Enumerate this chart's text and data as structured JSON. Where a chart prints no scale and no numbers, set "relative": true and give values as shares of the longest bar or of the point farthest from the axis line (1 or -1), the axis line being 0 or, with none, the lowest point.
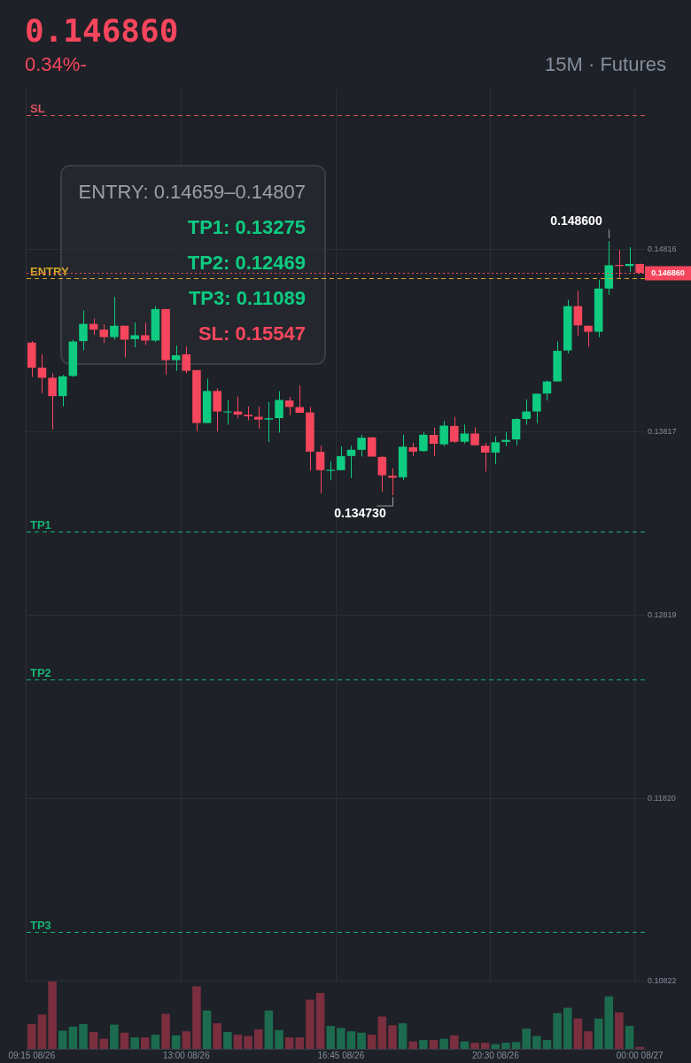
{
  "chart_data": [
    {
      "type": "candlestick",
      "title": "0.146860",
      "subtitle": "0.34%-",
      "annotations": [
        "15M · Futures",
        "ENTRY: 0.14659–0.14807",
        "TP1: 0.13275",
        "TP2: 0.12469",
        "TP3: 0.11089",
        "SL: 0.15547",
        "0.148600",
        "0.134730"
      ],
      "categories": [
        "09:15 08/26",
        null,
        null,
        null,
        null,
        null,
        null,
        null,
        null,
        null,
        null,
        null,
        null,
        null,
        null,
        "13:00 08/26",
        null,
        null,
        null,
        null,
        null,
        null,
        null,
        null,
        null,
        null,
        null,
        null,
        null,
        null,
        "16:45 08/26",
        null,
        null,
        null,
        null,
        null,
        null,
        null,
        null,
        null,
        null,
        null,
        null,
        null,
        null,
        "20:30 08/26",
        null,
        null,
        null,
        null,
        null,
        null,
        null,
        null,
        null,
        null,
        null,
        null,
        null,
        "00:00 08/27"
      ],
      "ohlc": [
        [
          0.14306,
          0.14314,
          0.14118,
          0.14169
        ],
        [
          0.14169,
          0.14242,
          0.1403,
          0.14114
        ],
        [
          0.14114,
          0.14137,
          0.13831,
          0.14014
        ],
        [
          0.14014,
          0.1413,
          0.13958,
          0.14122
        ],
        [
          0.14124,
          0.14322,
          0.14118,
          0.14312
        ],
        [
          0.14314,
          0.14481,
          0.14264,
          0.14408
        ],
        [
          0.14408,
          0.14437,
          0.14349,
          0.14377
        ],
        [
          0.14377,
          0.14405,
          0.14304,
          0.14336
        ],
        [
          0.14336,
          0.14556,
          0.14322,
          0.14398
        ],
        [
          0.14398,
          0.14398,
          0.14226,
          0.14322
        ],
        [
          0.14325,
          0.14416,
          0.1428,
          0.14346
        ],
        [
          0.14346,
          0.14416,
          0.14293,
          0.14317
        ],
        [
          0.14317,
          0.14505,
          0.14309,
          0.14489
        ],
        [
          0.14489,
          0.14489,
          0.1413,
          0.1421
        ],
        [
          0.1421,
          0.1429,
          0.14152,
          0.14237
        ],
        [
          0.14242,
          0.14285,
          0.14138,
          0.14152
        ],
        [
          0.14156,
          0.14156,
          0.13822,
          0.13867
        ],
        [
          0.13867,
          0.14109,
          0.13867,
          0.14042
        ],
        [
          0.14042,
          0.14057,
          0.13822,
          0.1393
        ],
        [
          0.13925,
          0.13993,
          0.13858,
          0.1393
        ],
        [
          0.1393,
          0.14011,
          0.13893,
          0.13913
        ],
        [
          0.13912,
          0.13958,
          0.13882,
          0.13904
        ],
        [
          0.13901,
          0.13958,
          0.13837,
          0.13886
        ],
        [
          0.13886,
          0.13982,
          0.13764,
          0.13893
        ],
        [
          0.13894,
          0.14041,
          0.13815,
          0.13993
        ],
        [
          0.1399,
          0.14009,
          0.1391,
          0.13955
        ],
        [
          0.13954,
          0.14073,
          0.13923,
          0.13923
        ],
        [
          0.13925,
          0.13955,
          0.13607,
          0.13711
        ],
        [
          0.1371,
          0.13743,
          0.13483,
          0.1361
        ],
        [
          0.13606,
          0.13658,
          0.13556,
          0.13612
        ],
        [
          0.1361,
          0.1374,
          0.1361,
          0.13687
        ],
        [
          0.13687,
          0.13744,
          0.13567,
          0.13721
        ],
        [
          0.13721,
          0.13803,
          0.13684,
          0.13787
        ],
        [
          0.13789,
          0.13789,
          0.13684,
          0.13684
        ],
        [
          0.13682,
          0.13687,
          0.13492,
          0.13582
        ],
        [
          0.1358,
          0.1362,
          0.13473,
          0.13569
        ],
        [
          0.13571,
          0.13803,
          0.13556,
          0.13738
        ],
        [
          0.13735,
          0.13759,
          0.13687,
          0.13711
        ],
        [
          0.13714,
          0.13816,
          0.13709,
          0.13803
        ],
        [
          0.13802,
          0.13842,
          0.13687,
          0.13754
        ],
        [
          0.13751,
          0.13878,
          0.13741,
          0.13853
        ],
        [
          0.13851,
          0.13901,
          0.13759,
          0.13765
        ],
        [
          0.13765,
          0.13859,
          0.13755,
          0.1381
        ],
        [
          0.1381,
          0.13843,
          0.13746,
          0.13746
        ],
        [
          0.13743,
          0.13759,
          0.13602,
          0.13706
        ],
        [
          0.13706,
          0.13794,
          0.13642,
          0.13762
        ],
        [
          0.13764,
          0.13819,
          0.13741,
          0.13775
        ],
        [
          0.13778,
          0.13893,
          0.13746,
          0.13889
        ],
        [
          0.13889,
          0.13996,
          0.13858,
          0.1393
        ],
        [
          0.1393,
          0.14027,
          0.13866,
          0.14027
        ],
        [
          0.14028,
          0.141,
          0.1399,
          0.14094
        ],
        [
          0.14094,
          0.14312,
          0.14094,
          0.14261
        ],
        [
          0.14263,
          0.1454,
          0.14247,
          0.14505
        ],
        [
          0.14505,
          0.14588,
          0.14344,
          0.144
        ],
        [
          0.14398,
          0.14398,
          0.14282,
          0.14365
        ],
        [
          0.14365,
          0.14649,
          0.14336,
          0.14601
        ],
        [
          0.14601,
          0.1486,
          0.14567,
          0.14728
        ],
        [
          0.1473,
          0.14811,
          0.14657,
          0.14724
        ],
        [
          0.14724,
          0.14827,
          0.14692,
          0.14735
        ],
        [
          0.14735,
          0.14738,
          0.14686,
          0.14686
        ]
      ],
      "colors": [
        "#f6465d",
        "#f6465d",
        "#f6465d",
        "#0ecb81",
        "#0ecb81",
        "#0ecb81",
        "#f6465d",
        "#f6465d",
        "#0ecb81",
        "#f6465d",
        "#0ecb81",
        "#f6465d",
        "#0ecb81",
        "#f6465d",
        "#0ecb81",
        "#f6465d",
        "#f6465d",
        "#0ecb81",
        "#f6465d",
        "#0ecb81",
        "#f6465d",
        "#f6465d",
        "#f6465d",
        "#0ecb81",
        "#0ecb81",
        "#f6465d",
        "#f6465d",
        "#f6465d",
        "#f6465d",
        "#0ecb81",
        "#0ecb81",
        "#0ecb81",
        "#0ecb81",
        "#f6465d",
        "#f6465d",
        "#f6465d",
        "#0ecb81",
        "#f6465d",
        "#0ecb81",
        "#f6465d",
        "#0ecb81",
        "#f6465d",
        "#0ecb81",
        "#f6465d",
        "#f6465d",
        "#0ecb81",
        "#0ecb81",
        "#0ecb81",
        "#0ecb81",
        "#0ecb81",
        "#0ecb81",
        "#0ecb81",
        "#0ecb81",
        "#f6465d",
        "#f6465d",
        "#0ecb81",
        "#0ecb81",
        "#f6465d",
        "#0ecb81",
        "#f6465d"
      ],
      "ylim": [
        0.10822,
        0.1569
      ],
      "yticks": [
        0.10822,
        {
          "value": 0.1182,
          "label": "0.11820"
        },
        0.12819,
        0.13817,
        0.14816
      ],
      "grid": true,
      "tick_labels": "y",
      "ref_lines": [
        {
          "axis": "y",
          "value": 0.15547,
          "label": "SL",
          "color": "#d9505f",
          "line_style": "dashed"
        },
        {
          "axis": "y",
          "value": 0.14659,
          "label": "ENTRY",
          "color": "#d4a82a",
          "line_style": "dashed"
        },
        {
          "axis": "y",
          "value": 0.13275,
          "label": "TP1",
          "color": "#16b374",
          "line_style": "dashed"
        },
        {
          "axis": "y",
          "value": 0.12469,
          "label": "TP2",
          "color": "#16b374",
          "line_style": "dashed"
        },
        {
          "axis": "y",
          "value": 0.11089,
          "label": "TP3",
          "color": "#16b374",
          "line_style": "dashed"
        },
        {
          "axis": "y",
          "value": 0.14686,
          "label": "0.146860",
          "color": "#f6465d",
          "line_style": "dotted"
        }
      ]
    },
    {
      "type": "bar",
      "relative": true,
      "categories": [
        null,
        null,
        null,
        null,
        null,
        null,
        null,
        null,
        null,
        null,
        null,
        null,
        null,
        null,
        null,
        null,
        null,
        null,
        null,
        null,
        null,
        null,
        null,
        null,
        null,
        null,
        null,
        null,
        null,
        null,
        null,
        null,
        null,
        null,
        null,
        null,
        null,
        null,
        null,
        null,
        null,
        null,
        null,
        null,
        null,
        null,
        null,
        null,
        null,
        null,
        null,
        null,
        null,
        null,
        null,
        null,
        null,
        null,
        null,
        null
      ],
      "values": [
        0.37,
        0.51,
        1,
        0.27,
        0.33,
        0.37,
        0.25,
        0.15,
        0.36,
        0.24,
        0.17,
        0.17,
        0.21,
        0.52,
        0.2,
        0.26,
        0.93,
        0.57,
        0.38,
        0.25,
        0.21,
        0.19,
        0.29,
        0.57,
        0.28,
        0.17,
        0.17,
        0.73,
        0.83,
        0.34,
        0.31,
        0.26,
        0.24,
        0.21,
        0.48,
        0.35,
        0.38,
        0.11,
        0.13,
        0.13,
        0.15,
        0.2,
        0.11,
        0.09,
        0.09,
        0.07,
        0.09,
        0.1,
        0.3,
        0.19,
        0.13,
        0.53,
        0.61,
        0.45,
        0.26,
        0.45,
        0.78,
        0.54,
        0.34,
        0.03
      ],
      "colors": [
        "#7a2e3e",
        "#7a2e3e",
        "#7a2e3e",
        "#1c6b4f",
        "#1c6b4f",
        "#1c6b4f",
        "#7a2e3e",
        "#7a2e3e",
        "#1c6b4f",
        "#7a2e3e",
        "#1c6b4f",
        "#7a2e3e",
        "#1c6b4f",
        "#7a2e3e",
        "#1c6b4f",
        "#7a2e3e",
        "#7a2e3e",
        "#1c6b4f",
        "#7a2e3e",
        "#1c6b4f",
        "#7a2e3e",
        "#7a2e3e",
        "#7a2e3e",
        "#1c6b4f",
        "#1c6b4f",
        "#7a2e3e",
        "#7a2e3e",
        "#7a2e3e",
        "#7a2e3e",
        "#1c6b4f",
        "#1c6b4f",
        "#1c6b4f",
        "#1c6b4f",
        "#7a2e3e",
        "#7a2e3e",
        "#7a2e3e",
        "#1c6b4f",
        "#7a2e3e",
        "#1c6b4f",
        "#7a2e3e",
        "#1c6b4f",
        "#7a2e3e",
        "#1c6b4f",
        "#7a2e3e",
        "#7a2e3e",
        "#1c6b4f",
        "#1c6b4f",
        "#1c6b4f",
        "#1c6b4f",
        "#1c6b4f",
        "#1c6b4f",
        "#1c6b4f",
        "#1c6b4f",
        "#7a2e3e",
        "#7a2e3e",
        "#1c6b4f",
        "#1c6b4f",
        "#7a2e3e",
        "#1c6b4f",
        "#7a2e3e"
      ]
    }
  ]
}
